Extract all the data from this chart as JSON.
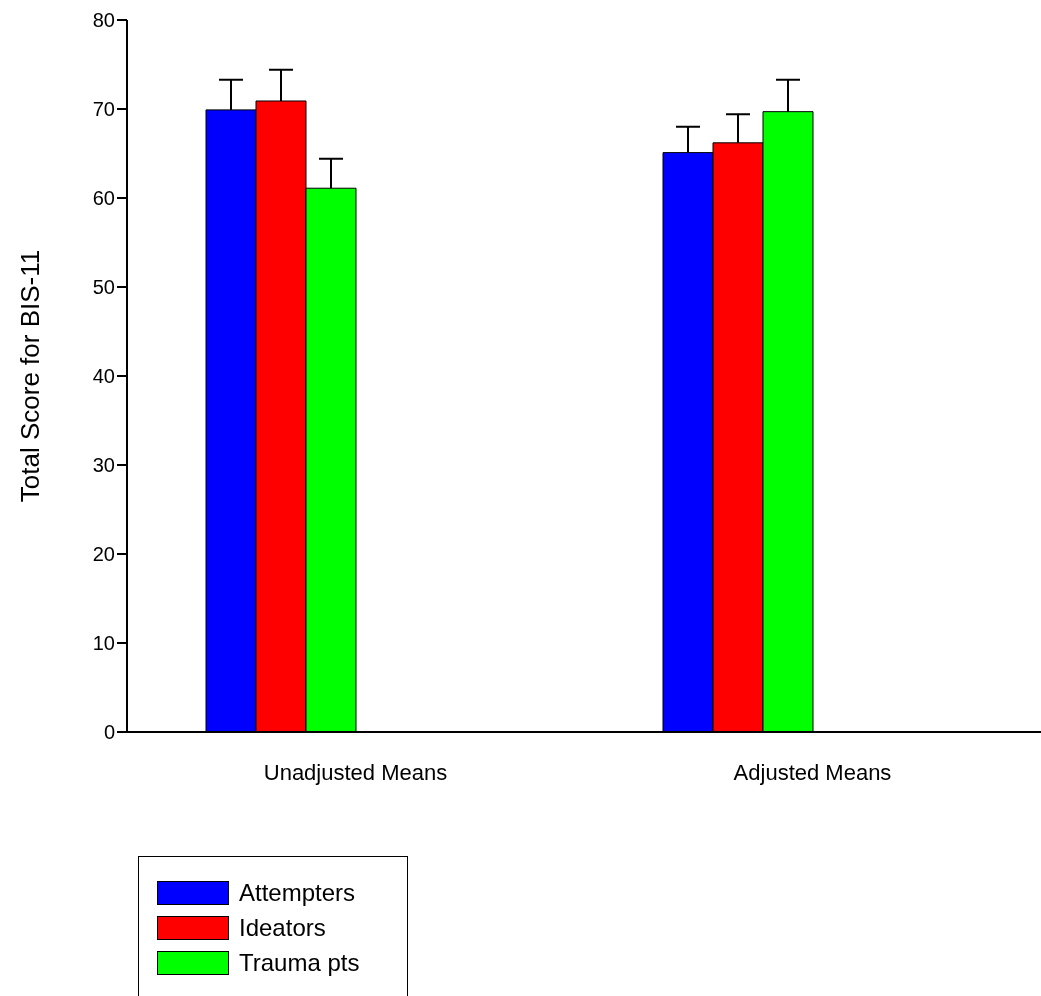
{
  "chart_data": {
    "type": "bar",
    "categories": [
      "Unadjusted Means",
      "Adjusted Means"
    ],
    "series": [
      {
        "name": "Attempters",
        "color": "#0000ff",
        "values": [
          69.9,
          65.1
        ],
        "errors": [
          [
            69.9,
            73.3
          ],
          [
            65.1,
            68.0
          ]
        ]
      },
      {
        "name": "Ideators",
        "color": "#ff0000",
        "values": [
          70.9,
          66.2
        ],
        "errors": [
          [
            70.9,
            74.4
          ],
          [
            66.2,
            69.4
          ]
        ]
      },
      {
        "name": "Trauma pts",
        "color": "#00ff00",
        "values": [
          61.1,
          69.7
        ],
        "errors": [
          [
            61.1,
            64.4
          ],
          [
            69.7,
            73.3
          ]
        ]
      }
    ],
    "ylabel": "Total Score for BIS-11",
    "ylim": [
      0,
      80
    ],
    "yticks": [
      0,
      10,
      20,
      30,
      40,
      50,
      60,
      70,
      80
    ],
    "grid": false,
    "legend": "bottom left"
  }
}
